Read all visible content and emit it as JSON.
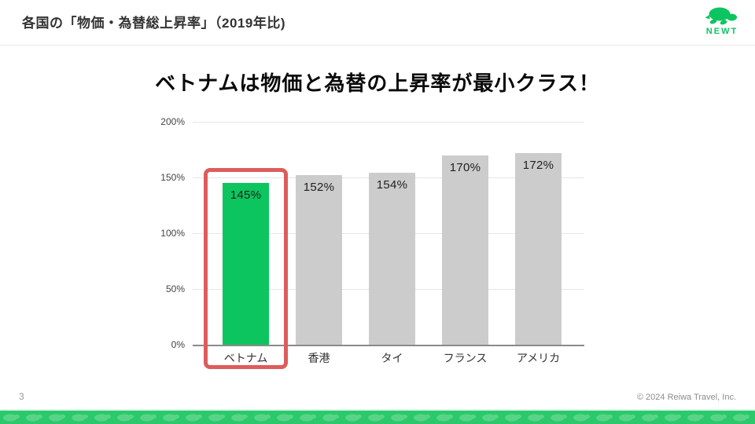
{
  "header": {
    "title": "各国の「物価・為替総上昇率」（2019年比)",
    "logo_text": "NEWT"
  },
  "main": {
    "headline": "ベトナムは物価と為替の上昇率が最小クラス！"
  },
  "chart_data": {
    "type": "bar",
    "title": "ベトナムは物価と為替の上昇率が最小クラス！",
    "categories": [
      "ベトナム",
      "香港",
      "タイ",
      "フランス",
      "アメリカ"
    ],
    "values": [
      145,
      152,
      154,
      170,
      172
    ],
    "value_labels": [
      "145%",
      "152%",
      "154%",
      "170%",
      "172%"
    ],
    "y_ticks": [
      "200%",
      "150%",
      "100%",
      "50%",
      "0%"
    ],
    "ylim": [
      0,
      200
    ],
    "grid": true,
    "legend_position": "none",
    "highlight_index": 0,
    "highlight_color": "#0cc55e",
    "bar_color": "#cccccc",
    "highlight_box_color": "#dd5c5c",
    "xlabel": "",
    "ylabel": ""
  },
  "footer": {
    "page_number": "3",
    "copyright": "© 2024 Reiwa Travel, Inc."
  },
  "colors": {
    "brand_green": "#0dc560",
    "band_green": "#2bc96b",
    "band_turtle_green": "#58d488",
    "highlight_red": "#dd5c5c",
    "gray_bar": "#cccccc"
  }
}
